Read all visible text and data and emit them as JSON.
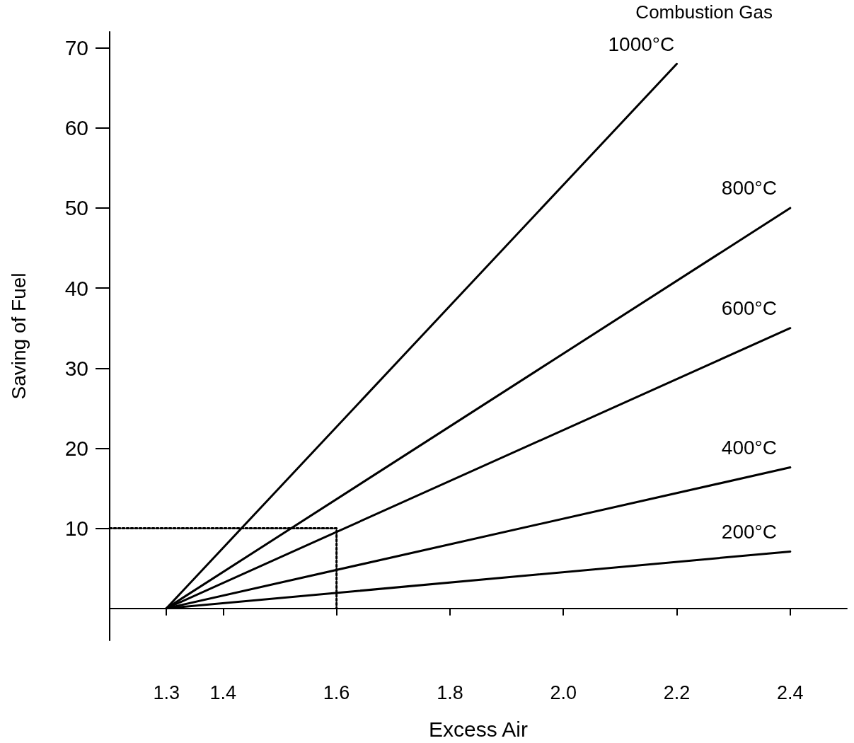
{
  "chart_data": {
    "type": "line",
    "xlabel": "Excess Air",
    "ylabel": "Saving of Fuel",
    "annotations": [
      "Combustion Gas"
    ],
    "xlim": [
      1.2,
      2.5
    ],
    "ylim": [
      -4,
      72
    ],
    "xticks": [
      1.3,
      1.4,
      1.6,
      1.8,
      {
        "value": 2,
        "label": "2.0"
      },
      2.2,
      2.4
    ],
    "yticks": [
      10,
      20,
      30,
      40,
      50,
      60,
      70
    ],
    "grid": false,
    "legend": false,
    "marker": "none",
    "line_style": "solid",
    "series": [
      {
        "name": "1000°C",
        "color": "#000000",
        "x": [
          1.3,
          2.2
        ],
        "values": [
          0,
          68
        ]
      },
      {
        "name": "800°C",
        "color": "#000000",
        "x": [
          1.3,
          2.4
        ],
        "values": [
          0,
          50
        ]
      },
      {
        "name": "600°C",
        "color": "#000000",
        "x": [
          1.3,
          2.4
        ],
        "values": [
          0,
          35
        ]
      },
      {
        "name": "400°C",
        "color": "#000000",
        "x": [
          1.3,
          2.4
        ],
        "values": [
          0,
          17.6
        ]
      },
      {
        "name": "200°C",
        "color": "#000000",
        "x": [
          1.3,
          2.4
        ],
        "values": [
          0,
          7.1
        ]
      },
      {
        "color": "#000000",
        "line_style": "dotted",
        "x": [
          1.2,
          1.6,
          1.6
        ],
        "values": [
          10,
          10,
          0
        ]
      }
    ]
  }
}
